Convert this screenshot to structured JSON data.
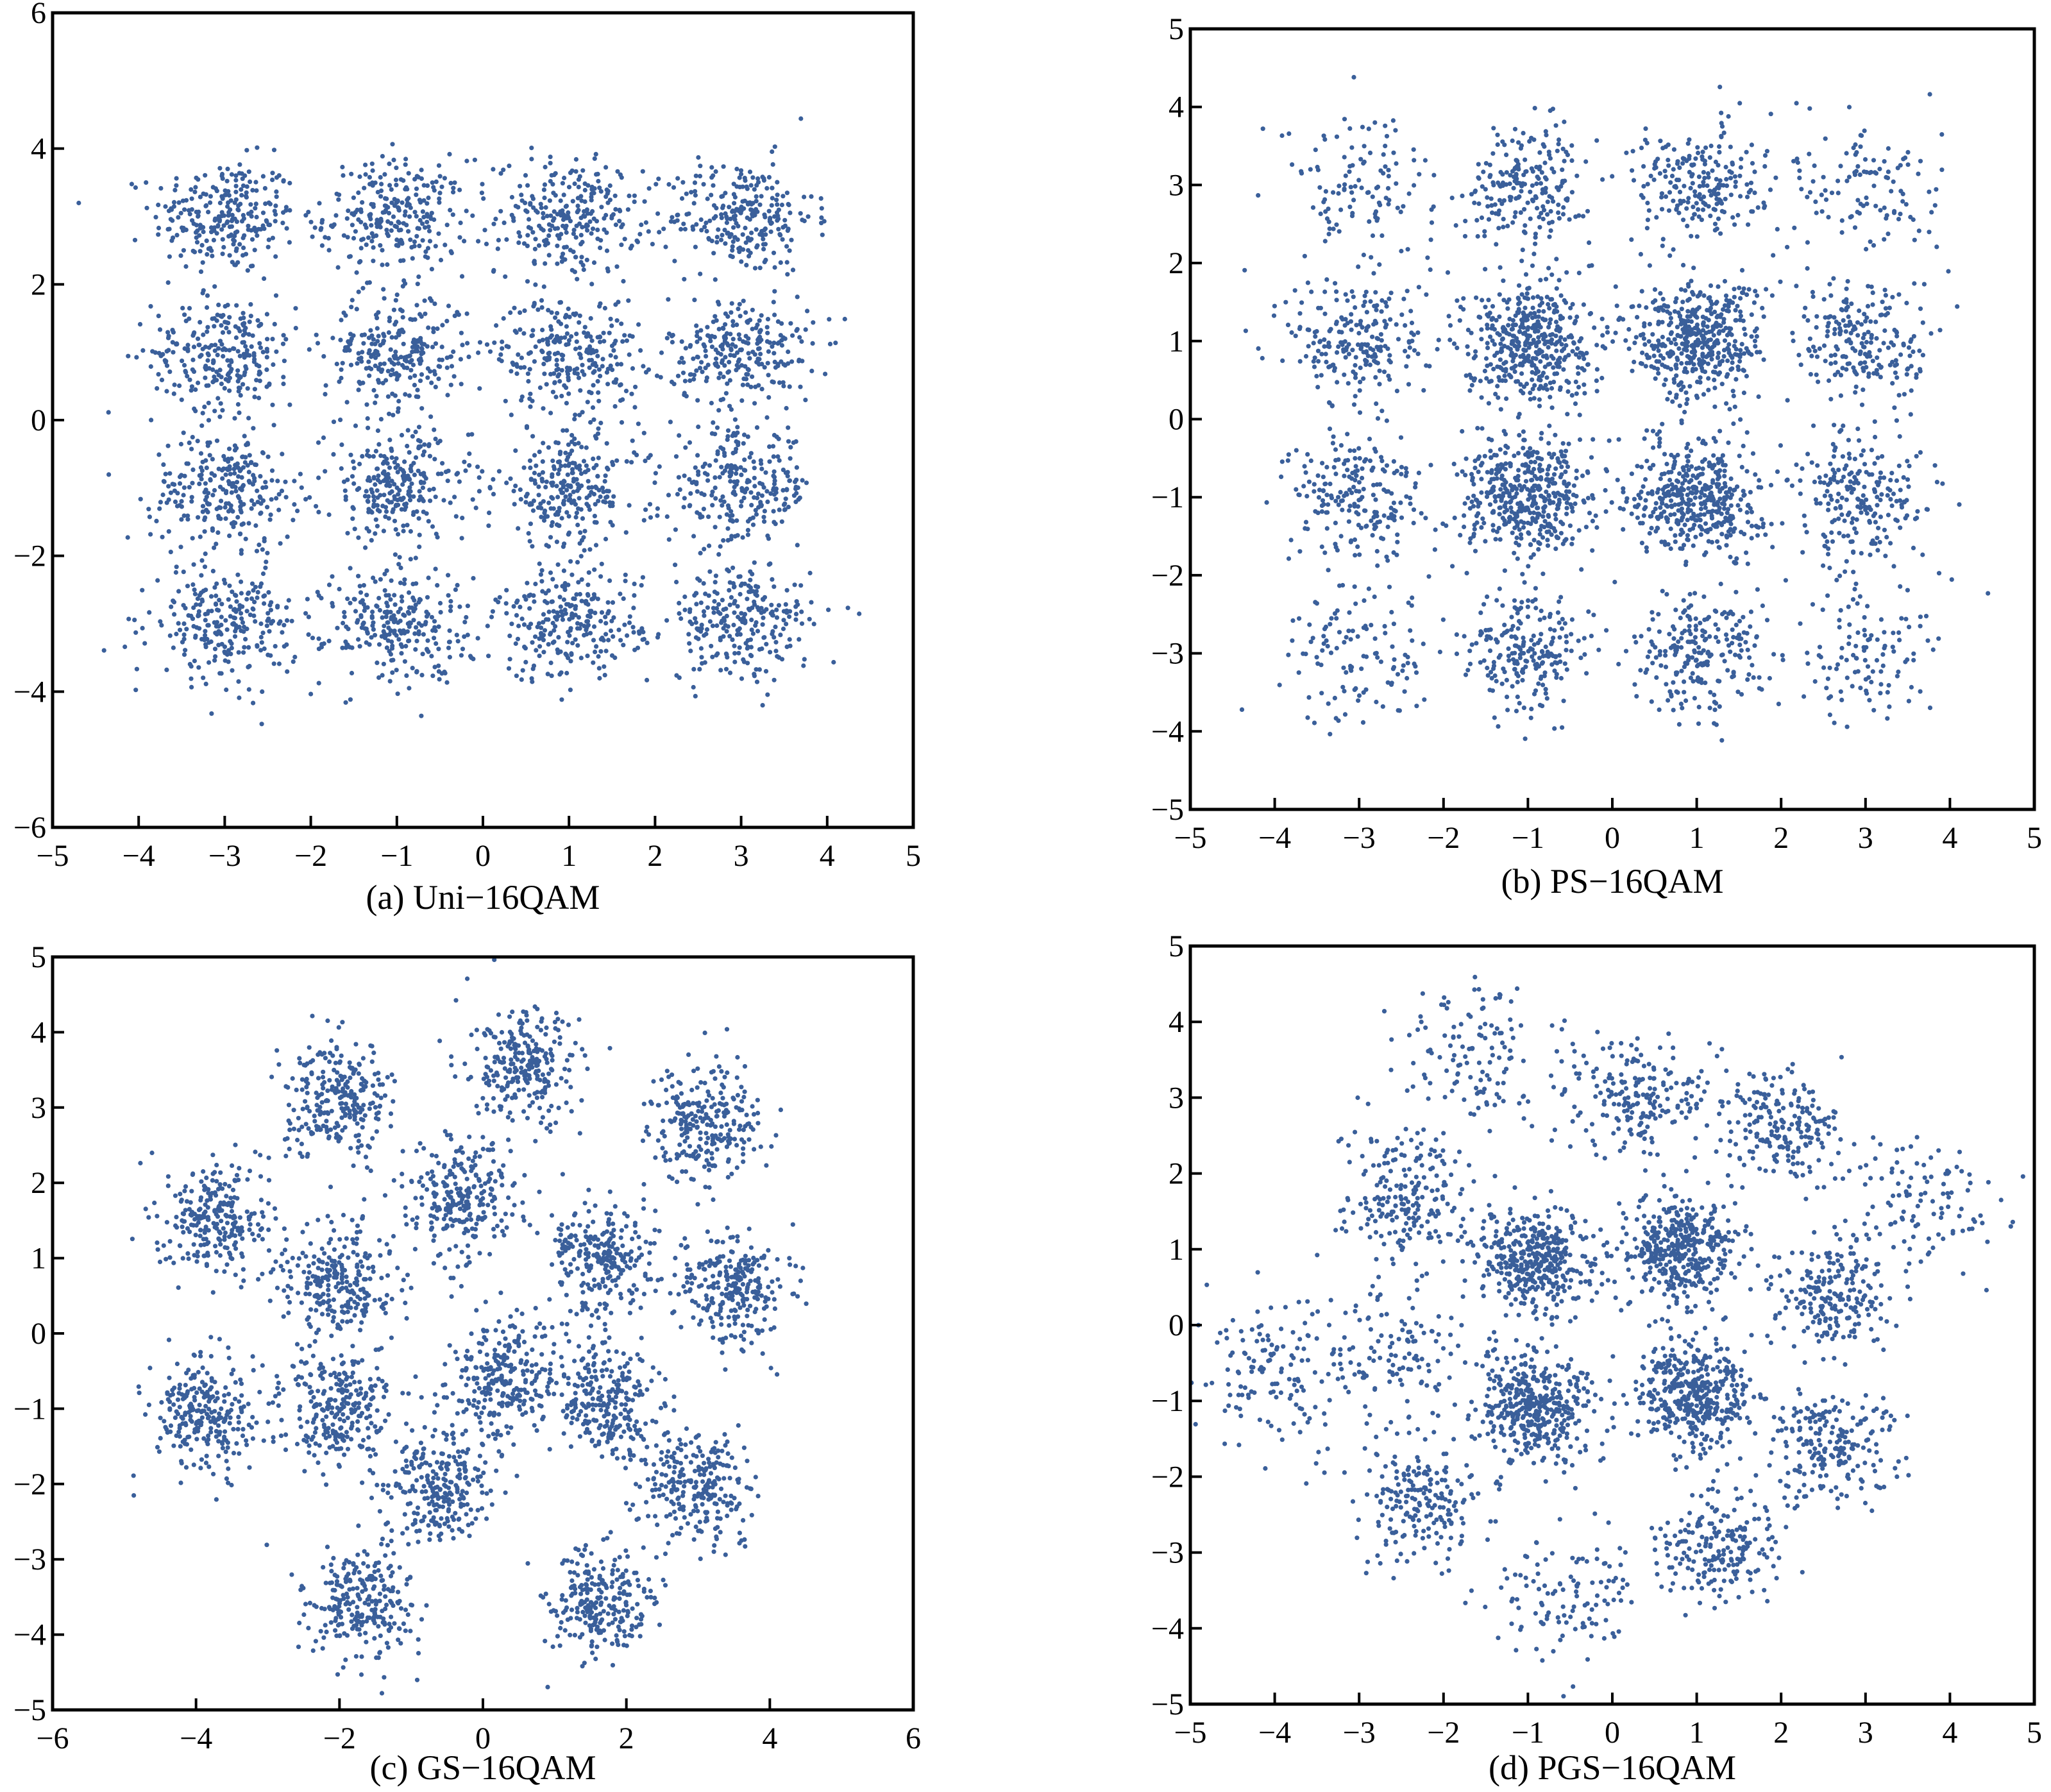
{
  "figure": {
    "marker_color": "#3a5f9a",
    "samples_note_points_per_cluster": 0
  },
  "chart_data": [
    {
      "type": "scatter",
      "caption": "(a) Uni−16QAM",
      "title": "",
      "xlabel": "",
      "ylabel": "",
      "xlim": [
        -5,
        5
      ],
      "ylim": [
        -6,
        6
      ],
      "xticks": [
        "−5",
        "−4",
        "−3",
        "−2",
        "−1",
        "0",
        "1",
        "2",
        "3",
        "4",
        "5"
      ],
      "yticks": [
        "−6",
        "−4",
        "−2",
        "0",
        "2",
        "4",
        "6"
      ],
      "grid": false,
      "legend": "none",
      "marker_color": "#3a5f9a",
      "clusters": [
        {
          "x": -3,
          "y": 3,
          "spread": 0.42,
          "density": 1.0
        },
        {
          "x": -1,
          "y": 3,
          "spread": 0.42,
          "density": 1.0
        },
        {
          "x": 1,
          "y": 3,
          "spread": 0.42,
          "density": 1.0
        },
        {
          "x": 3,
          "y": 3,
          "spread": 0.42,
          "density": 1.0
        },
        {
          "x": -3,
          "y": 1,
          "spread": 0.42,
          "density": 1.0
        },
        {
          "x": -1,
          "y": 1,
          "spread": 0.42,
          "density": 1.0
        },
        {
          "x": 1,
          "y": 1,
          "spread": 0.42,
          "density": 1.0
        },
        {
          "x": 3,
          "y": 1,
          "spread": 0.42,
          "density": 1.0
        },
        {
          "x": -3,
          "y": -1,
          "spread": 0.42,
          "density": 1.0
        },
        {
          "x": -1,
          "y": -1,
          "spread": 0.42,
          "density": 1.0
        },
        {
          "x": 1,
          "y": -1,
          "spread": 0.42,
          "density": 1.0
        },
        {
          "x": 3,
          "y": -1,
          "spread": 0.42,
          "density": 1.0
        },
        {
          "x": -3,
          "y": -3,
          "spread": 0.42,
          "density": 1.0
        },
        {
          "x": -1,
          "y": -3,
          "spread": 0.42,
          "density": 1.0
        },
        {
          "x": 1,
          "y": -3,
          "spread": 0.42,
          "density": 1.0
        },
        {
          "x": 3,
          "y": -3,
          "spread": 0.42,
          "density": 1.0
        }
      ]
    },
    {
      "type": "scatter",
      "caption": "(b) PS−16QAM",
      "title": "",
      "xlabel": "",
      "ylabel": "",
      "xlim": [
        -5,
        5
      ],
      "ylim": [
        -5,
        5
      ],
      "xticks": [
        "−5",
        "−4",
        "−3",
        "−2",
        "−1",
        "0",
        "1",
        "2",
        "3",
        "4",
        "5"
      ],
      "yticks": [
        "−5",
        "−4",
        "−3",
        "−2",
        "−1",
        "0",
        "1",
        "2",
        "3",
        "4",
        "5"
      ],
      "grid": false,
      "legend": "none",
      "marker_color": "#3a5f9a",
      "clusters": [
        {
          "x": -3,
          "y": 3,
          "spread": 0.45,
          "density": 0.45
        },
        {
          "x": -1,
          "y": 3,
          "spread": 0.38,
          "density": 0.85
        },
        {
          "x": 1,
          "y": 3,
          "spread": 0.38,
          "density": 0.85
        },
        {
          "x": 3,
          "y": 3,
          "spread": 0.45,
          "density": 0.45
        },
        {
          "x": -3,
          "y": 1,
          "spread": 0.42,
          "density": 0.85
        },
        {
          "x": -1,
          "y": 1,
          "spread": 0.38,
          "density": 1.7
        },
        {
          "x": 1,
          "y": 1,
          "spread": 0.38,
          "density": 1.7
        },
        {
          "x": 3,
          "y": 1,
          "spread": 0.42,
          "density": 0.85
        },
        {
          "x": -3,
          "y": -1,
          "spread": 0.42,
          "density": 0.85
        },
        {
          "x": -1,
          "y": -1,
          "spread": 0.38,
          "density": 1.7
        },
        {
          "x": 1,
          "y": -1,
          "spread": 0.38,
          "density": 1.7
        },
        {
          "x": 3,
          "y": -1,
          "spread": 0.42,
          "density": 0.85
        },
        {
          "x": -3,
          "y": -3,
          "spread": 0.45,
          "density": 0.45
        },
        {
          "x": -1,
          "y": -3,
          "spread": 0.38,
          "density": 0.85
        },
        {
          "x": 1,
          "y": -3,
          "spread": 0.38,
          "density": 0.85
        },
        {
          "x": 3,
          "y": -3,
          "spread": 0.45,
          "density": 0.45
        }
      ]
    },
    {
      "type": "scatter",
      "caption": "(c) GS−16QAM",
      "title": "",
      "xlabel": "",
      "ylabel": "",
      "xlim": [
        -6,
        6
      ],
      "ylim": [
        -5,
        5
      ],
      "xticks": [
        "−6",
        "−4",
        "−2",
        "0",
        "2",
        "4",
        "6"
      ],
      "yticks": [
        "−5",
        "−4",
        "−3",
        "−2",
        "−1",
        "0",
        "1",
        "2",
        "3",
        "4",
        "5"
      ],
      "grid": false,
      "legend": "none",
      "marker_color": "#3a5f9a",
      "clusters": [
        {
          "x": 0.6,
          "y": 3.5,
          "spread": 0.38,
          "density": 1.0
        },
        {
          "x": -2.0,
          "y": 3.1,
          "spread": 0.38,
          "density": 1.0
        },
        {
          "x": 3.1,
          "y": 2.8,
          "spread": 0.38,
          "density": 1.0
        },
        {
          "x": -0.3,
          "y": 1.8,
          "spread": 0.38,
          "density": 1.0
        },
        {
          "x": -3.7,
          "y": 1.5,
          "spread": 0.38,
          "density": 1.0
        },
        {
          "x": 1.7,
          "y": 1.0,
          "spread": 0.38,
          "density": 1.0
        },
        {
          "x": -2.0,
          "y": 0.7,
          "spread": 0.38,
          "density": 1.0
        },
        {
          "x": 3.5,
          "y": 0.6,
          "spread": 0.38,
          "density": 1.0
        },
        {
          "x": 0.3,
          "y": -0.6,
          "spread": 0.38,
          "density": 1.0
        },
        {
          "x": 1.7,
          "y": -0.9,
          "spread": 0.38,
          "density": 1.0
        },
        {
          "x": -2.0,
          "y": -1.0,
          "spread": 0.38,
          "density": 1.0
        },
        {
          "x": -3.9,
          "y": -1.1,
          "spread": 0.38,
          "density": 1.0
        },
        {
          "x": -0.6,
          "y": -2.0,
          "spread": 0.38,
          "density": 1.0
        },
        {
          "x": 3.0,
          "y": -2.0,
          "spread": 0.38,
          "density": 1.0
        },
        {
          "x": -1.7,
          "y": -3.6,
          "spread": 0.38,
          "density": 1.0
        },
        {
          "x": 1.6,
          "y": -3.6,
          "spread": 0.38,
          "density": 1.0
        }
      ]
    },
    {
      "type": "scatter",
      "caption": "(d) PGS−16QAM",
      "title": "",
      "xlabel": "",
      "ylabel": "",
      "xlim": [
        -5,
        5
      ],
      "ylim": [
        -5,
        5
      ],
      "xticks": [
        "−5",
        "−4",
        "−3",
        "−2",
        "−1",
        "0",
        "1",
        "2",
        "3",
        "4",
        "5"
      ],
      "yticks": [
        "−5",
        "−4",
        "−3",
        "−2",
        "−1",
        "0",
        "1",
        "2",
        "3",
        "4",
        "5"
      ],
      "grid": false,
      "legend": "none",
      "marker_color": "#3a5f9a",
      "clusters": [
        {
          "x": -0.9,
          "y": 0.8,
          "spread": 0.35,
          "density": 1.6
        },
        {
          "x": 0.8,
          "y": 1.0,
          "spread": 0.35,
          "density": 1.6
        },
        {
          "x": -0.9,
          "y": -1.1,
          "spread": 0.35,
          "density": 1.6
        },
        {
          "x": 1.0,
          "y": -0.9,
          "spread": 0.35,
          "density": 1.6
        },
        {
          "x": -2.5,
          "y": 1.7,
          "spread": 0.4,
          "density": 0.8
        },
        {
          "x": 0.3,
          "y": 3.0,
          "spread": 0.38,
          "density": 0.8
        },
        {
          "x": 2.0,
          "y": 2.6,
          "spread": 0.38,
          "density": 0.8
        },
        {
          "x": 2.6,
          "y": 0.4,
          "spread": 0.35,
          "density": 0.8
        },
        {
          "x": 2.6,
          "y": -1.6,
          "spread": 0.38,
          "density": 0.8
        },
        {
          "x": 1.3,
          "y": -2.9,
          "spread": 0.38,
          "density": 0.8
        },
        {
          "x": -2.2,
          "y": -2.3,
          "spread": 0.4,
          "density": 0.8
        },
        {
          "x": -4.0,
          "y": -0.6,
          "spread": 0.5,
          "density": 0.55
        },
        {
          "x": -1.6,
          "y": 3.5,
          "spread": 0.45,
          "density": 0.5
        },
        {
          "x": 3.6,
          "y": 1.6,
          "spread": 0.45,
          "density": 0.45
        },
        {
          "x": -0.6,
          "y": -3.6,
          "spread": 0.45,
          "density": 0.45
        },
        {
          "x": -2.6,
          "y": -0.3,
          "spread": 0.45,
          "density": 0.45
        }
      ]
    }
  ]
}
